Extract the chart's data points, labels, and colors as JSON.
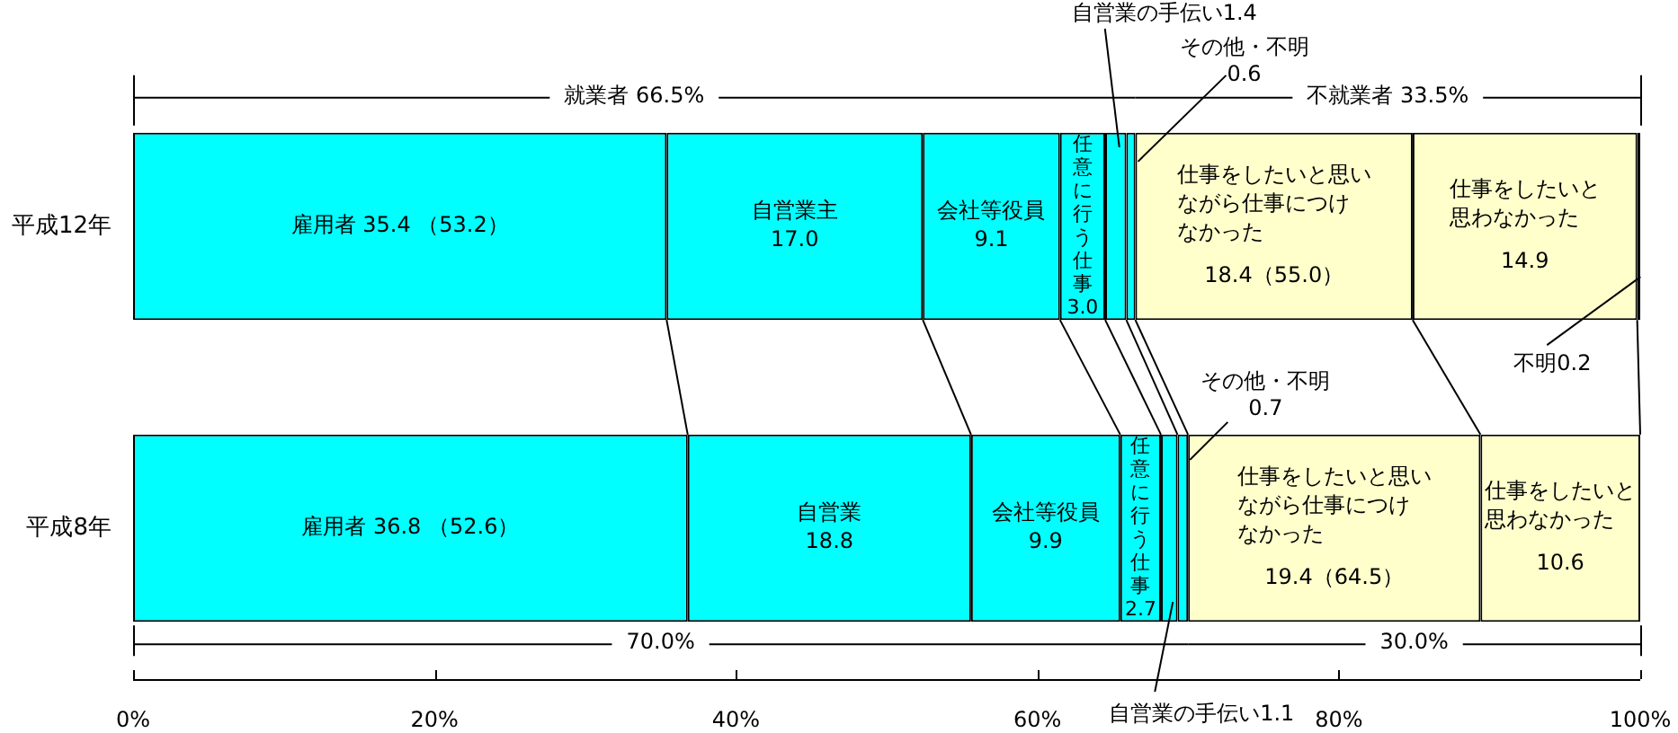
{
  "chart_data": {
    "type": "bar",
    "orientation": "horizontal",
    "stacked": true,
    "categories": [
      "平成12年",
      "平成8年"
    ],
    "series": [
      {
        "color": "#00ffff",
        "values": [
          35.4,
          36.8
        ],
        "value_labels": [
          "雇用者 35.4 （53.2）",
          "雇用者 36.8 （52.6）"
        ]
      },
      {
        "color": "#00ffff",
        "values": [
          17.0,
          18.8
        ],
        "value_labels": [
          "自営業主\n17.0",
          "自営業\n18.8"
        ]
      },
      {
        "color": "#00ffff",
        "values": [
          9.1,
          9.9
        ],
        "value_labels": [
          "会社等役員\n9.1",
          "会社等役員\n9.9"
        ]
      },
      {
        "color": "#00ffff",
        "values": [
          3.0,
          2.7
        ],
        "value_labels": [
          "任意に行う仕事\n3.0",
          "任意に行う仕事\n2.7"
        ]
      },
      {
        "color": "#00ffff",
        "values": [
          1.4,
          1.1
        ],
        "value_labels": [
          "自営業の手伝い1.4",
          "自営業の手伝い1.1"
        ]
      },
      {
        "color": "#00ffff",
        "values": [
          0.6,
          0.7
        ],
        "value_labels": [
          "その他・不明\n0.6",
          "その他・不明\n0.7"
        ]
      },
      {
        "color": "#ffffcc",
        "values": [
          18.4,
          19.4
        ],
        "value_labels": [
          "仕事をしたいと思いながら仕事につけなかった\n18.4（55.0）",
          "仕事をしたいと思いながら仕事につけなかった\n19.4（64.5）"
        ]
      },
      {
        "color": "#ffffcc",
        "values": [
          14.9,
          10.6
        ],
        "value_labels": [
          "仕事をしたいと思わなかった\n14.9",
          "仕事をしたいと思わなかった\n10.6"
        ]
      },
      {
        "color": "#000000",
        "values": [
          0.2,
          null
        ],
        "value_labels": [
          "不明0.2",
          null
        ]
      }
    ],
    "xlim": [
      0,
      100
    ],
    "xticks": [
      {
        "value": 0,
        "label": "0%"
      },
      {
        "value": 20,
        "label": "20%"
      },
      {
        "value": 40,
        "label": "40%"
      },
      {
        "value": 60,
        "label": "60%"
      },
      {
        "value": 80,
        "label": "80%"
      },
      {
        "value": 100,
        "label": "100%"
      }
    ],
    "annotations": [
      "就業者 66.5%",
      "不就業者 33.5%",
      "70.0%",
      "30.0%"
    ]
  }
}
